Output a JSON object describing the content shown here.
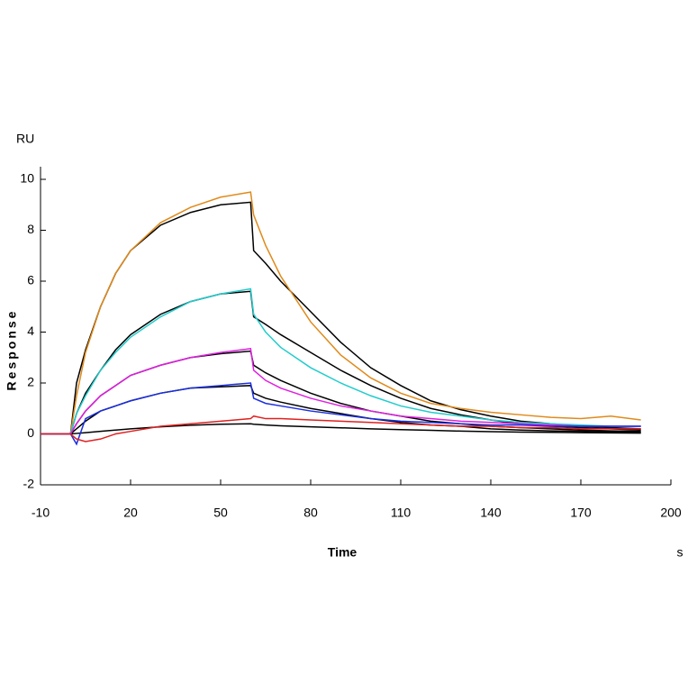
{
  "chart_data": {
    "type": "line",
    "y_unit_label": "RU",
    "ylabel": "Response",
    "xlabel": "Time",
    "x_unit_label": "s",
    "xlim": [
      -10,
      200
    ],
    "xticks": [
      -10,
      20,
      50,
      80,
      110,
      140,
      170,
      200
    ],
    "ylim": [
      -2,
      10
    ],
    "yticks": [
      -2,
      0,
      2,
      4,
      6,
      8,
      10
    ],
    "x": [
      -10,
      0,
      2,
      5,
      10,
      15,
      20,
      30,
      40,
      50,
      60,
      61,
      65,
      70,
      80,
      90,
      100,
      110,
      120,
      130,
      140,
      150,
      160,
      170,
      180,
      190
    ],
    "series": [
      {
        "color": "#000000",
        "values": [
          0,
          0,
          2.0,
          3.3,
          5.0,
          6.3,
          7.2,
          8.2,
          8.7,
          9.0,
          9.1,
          7.2,
          6.7,
          6.0,
          4.8,
          3.6,
          2.6,
          1.9,
          1.3,
          0.95,
          0.7,
          0.5,
          0.4,
          0.3,
          0.25,
          0.2
        ]
      },
      {
        "color": "#000000",
        "values": [
          0,
          0,
          0.8,
          1.6,
          2.5,
          3.3,
          3.9,
          4.7,
          5.2,
          5.5,
          5.6,
          4.6,
          4.3,
          3.9,
          3.2,
          2.5,
          1.9,
          1.4,
          1.0,
          0.75,
          0.55,
          0.4,
          0.3,
          0.25,
          0.2,
          0.15
        ]
      },
      {
        "color": "#000000",
        "values": [
          0,
          0,
          0.4,
          0.9,
          1.5,
          1.9,
          2.3,
          2.7,
          3.0,
          3.15,
          3.25,
          2.7,
          2.4,
          2.1,
          1.6,
          1.2,
          0.9,
          0.7,
          0.5,
          0.4,
          0.3,
          0.25,
          0.2,
          0.15,
          0.12,
          0.1
        ]
      },
      {
        "color": "#000000",
        "values": [
          0,
          0,
          0.2,
          0.5,
          0.9,
          1.1,
          1.3,
          1.6,
          1.8,
          1.85,
          1.9,
          1.6,
          1.4,
          1.25,
          1.0,
          0.8,
          0.6,
          0.45,
          0.35,
          0.3,
          0.2,
          0.15,
          0.12,
          0.1,
          0.08,
          0.06
        ]
      },
      {
        "color": "#000000",
        "values": [
          0,
          0,
          0.02,
          0.05,
          0.1,
          0.15,
          0.2,
          0.28,
          0.34,
          0.38,
          0.4,
          0.38,
          0.35,
          0.32,
          0.28,
          0.24,
          0.2,
          0.17,
          0.14,
          0.11,
          0.09,
          0.07,
          0.06,
          0.05,
          0.04,
          0.03
        ]
      },
      {
        "color": "#e08a1a",
        "values": [
          0,
          0,
          1.5,
          3.2,
          5.0,
          6.3,
          7.2,
          8.3,
          8.9,
          9.3,
          9.5,
          8.6,
          7.4,
          6.2,
          4.4,
          3.1,
          2.2,
          1.6,
          1.2,
          1.0,
          0.85,
          0.75,
          0.65,
          0.6,
          0.7,
          0.55
        ]
      },
      {
        "color": "#22cccc",
        "values": [
          0,
          0,
          0.8,
          1.5,
          2.5,
          3.2,
          3.8,
          4.6,
          5.2,
          5.5,
          5.7,
          4.7,
          4.0,
          3.4,
          2.6,
          2.0,
          1.5,
          1.1,
          0.85,
          0.7,
          0.55,
          0.45,
          0.4,
          0.35,
          0.3,
          0.3
        ]
      },
      {
        "color": "#e020e0",
        "values": [
          0,
          0,
          0.4,
          0.9,
          1.5,
          1.9,
          2.3,
          2.7,
          3.0,
          3.2,
          3.35,
          2.5,
          2.1,
          1.8,
          1.4,
          1.1,
          0.9,
          0.7,
          0.6,
          0.5,
          0.45,
          0.4,
          0.35,
          0.3,
          0.3,
          0.3
        ]
      },
      {
        "color": "#1a2ee0",
        "values": [
          0,
          0,
          -0.4,
          0.6,
          0.9,
          1.1,
          1.3,
          1.6,
          1.8,
          1.9,
          2.0,
          1.4,
          1.2,
          1.1,
          0.9,
          0.75,
          0.6,
          0.5,
          0.45,
          0.4,
          0.35,
          0.35,
          0.3,
          0.3,
          0.3,
          0.3
        ]
      },
      {
        "color": "#e02020",
        "values": [
          0,
          0,
          -0.2,
          -0.3,
          -0.2,
          0,
          0.1,
          0.3,
          0.4,
          0.5,
          0.6,
          0.7,
          0.6,
          0.6,
          0.55,
          0.5,
          0.45,
          0.4,
          0.35,
          0.3,
          0.3,
          0.25,
          0.25,
          0.2,
          0.2,
          0.2
        ]
      }
    ]
  }
}
